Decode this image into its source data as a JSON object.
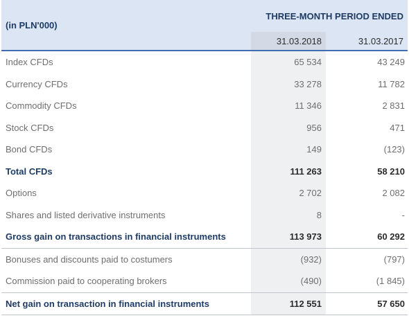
{
  "header": {
    "unit_label": "(in PLN'000)",
    "period_label": "THREE-MONTH PERIOD ENDED",
    "col_2018": "31.03.2018",
    "col_2017": "31.03.2017"
  },
  "rows": [
    {
      "label": "Index CFDs",
      "v2018": "65 534",
      "v2017": "43 249"
    },
    {
      "label": "Currency CFDs",
      "v2018": "33 278",
      "v2017": "11 782"
    },
    {
      "label": "Commodity CFDs",
      "v2018": "11 346",
      "v2017": "2 831"
    },
    {
      "label": "Stock CFDs",
      "v2018": "956",
      "v2017": "471"
    },
    {
      "label": "Bond CFDs",
      "v2018": "149",
      "v2017": "(123)"
    },
    {
      "label": "Total CFDs",
      "v2018": "111 263",
      "v2017": "58 210"
    },
    {
      "label": "Options",
      "v2018": "2 702",
      "v2017": "2 082"
    },
    {
      "label": "Shares and listed derivative instruments",
      "v2018": "8",
      "v2017": "-"
    },
    {
      "label": "Gross gain on transactions in financial instruments",
      "v2018": "113 973",
      "v2017": "60 292"
    },
    {
      "label": "Bonuses and discounts paid to costumers",
      "v2018": "(932)",
      "v2017": "(797)"
    },
    {
      "label": "Commission paid to cooperating brokers",
      "v2018": "(490)",
      "v2017": "(1 845)"
    },
    {
      "label": "Net gain on transaction in financial instruments",
      "v2018": "112 551",
      "v2017": "57 650"
    }
  ]
}
